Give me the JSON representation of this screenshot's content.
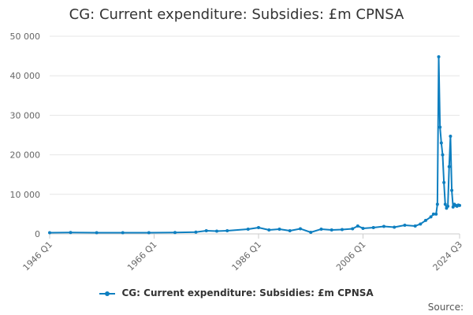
{
  "chart_data": {
    "type": "line",
    "title": "CG: Current expenditure: Subsidies: £m CPNSA",
    "xlabel": "",
    "ylabel": "",
    "ylim": [
      0,
      50000
    ],
    "yticks": [
      0,
      10000,
      20000,
      30000,
      40000,
      50000
    ],
    "ytick_labels": [
      "0",
      "10 000",
      "20 000",
      "30 000",
      "40 000",
      "50 000"
    ],
    "xlim": [
      "1946 Q1",
      "2024 Q3"
    ],
    "xtick_labels": [
      "1946 Q1",
      "1966 Q1",
      "1986 Q1",
      "2006 Q1",
      "2024 Q3"
    ],
    "grid": true,
    "legend": "bottom-center",
    "series": [
      {
        "name": "CG: Current expenditure: Subsidies: £m CPNSA",
        "color": "#0e7fc0",
        "points": [
          [
            "1946 Q1",
            300
          ],
          [
            "1950 Q1",
            350
          ],
          [
            "1955 Q1",
            300
          ],
          [
            "1960 Q1",
            300
          ],
          [
            "1965 Q1",
            300
          ],
          [
            "1970 Q1",
            350
          ],
          [
            "1974 Q1",
            450
          ],
          [
            "1976 Q1",
            800
          ],
          [
            "1978 Q1",
            700
          ],
          [
            "1980 Q1",
            800
          ],
          [
            "1984 Q1",
            1200
          ],
          [
            "1986 Q1",
            1600
          ],
          [
            "1988 Q1",
            1000
          ],
          [
            "1990 Q1",
            1200
          ],
          [
            "1992 Q1",
            800
          ],
          [
            "1994 Q1",
            1300
          ],
          [
            "1996 Q1",
            400
          ],
          [
            "1998 Q1",
            1200
          ],
          [
            "2000 Q1",
            1000
          ],
          [
            "2002 Q1",
            1100
          ],
          [
            "2004 Q1",
            1300
          ],
          [
            "2005 Q1",
            2000
          ],
          [
            "2006 Q1",
            1400
          ],
          [
            "2008 Q1",
            1600
          ],
          [
            "2010 Q1",
            1900
          ],
          [
            "2012 Q1",
            1700
          ],
          [
            "2014 Q1",
            2200
          ],
          [
            "2016 Q1",
            2000
          ],
          [
            "2017 Q1",
            2500
          ],
          [
            "2018 Q1",
            3400
          ],
          [
            "2019 Q1",
            4300
          ],
          [
            "2019 Q3",
            5000
          ],
          [
            "2020 Q1",
            5000
          ],
          [
            "2020 Q2",
            7500
          ],
          [
            "2020 Q3",
            44800
          ],
          [
            "2020 Q4",
            27000
          ],
          [
            "2021 Q1",
            23000
          ],
          [
            "2021 Q2",
            20000
          ],
          [
            "2021 Q3",
            13000
          ],
          [
            "2021 Q4",
            7500
          ],
          [
            "2022 Q1",
            6500
          ],
          [
            "2022 Q2",
            7000
          ],
          [
            "2022 Q3",
            17000
          ],
          [
            "2022 Q4",
            24700
          ],
          [
            "2023 Q1",
            11000
          ],
          [
            "2023 Q2",
            6800
          ],
          [
            "2023 Q3",
            7500
          ],
          [
            "2023 Q4",
            7200
          ],
          [
            "2024 Q1",
            7000
          ],
          [
            "2024 Q2",
            7300
          ],
          [
            "2024 Q3",
            7200
          ]
        ]
      }
    ],
    "source_label": "Source:"
  }
}
